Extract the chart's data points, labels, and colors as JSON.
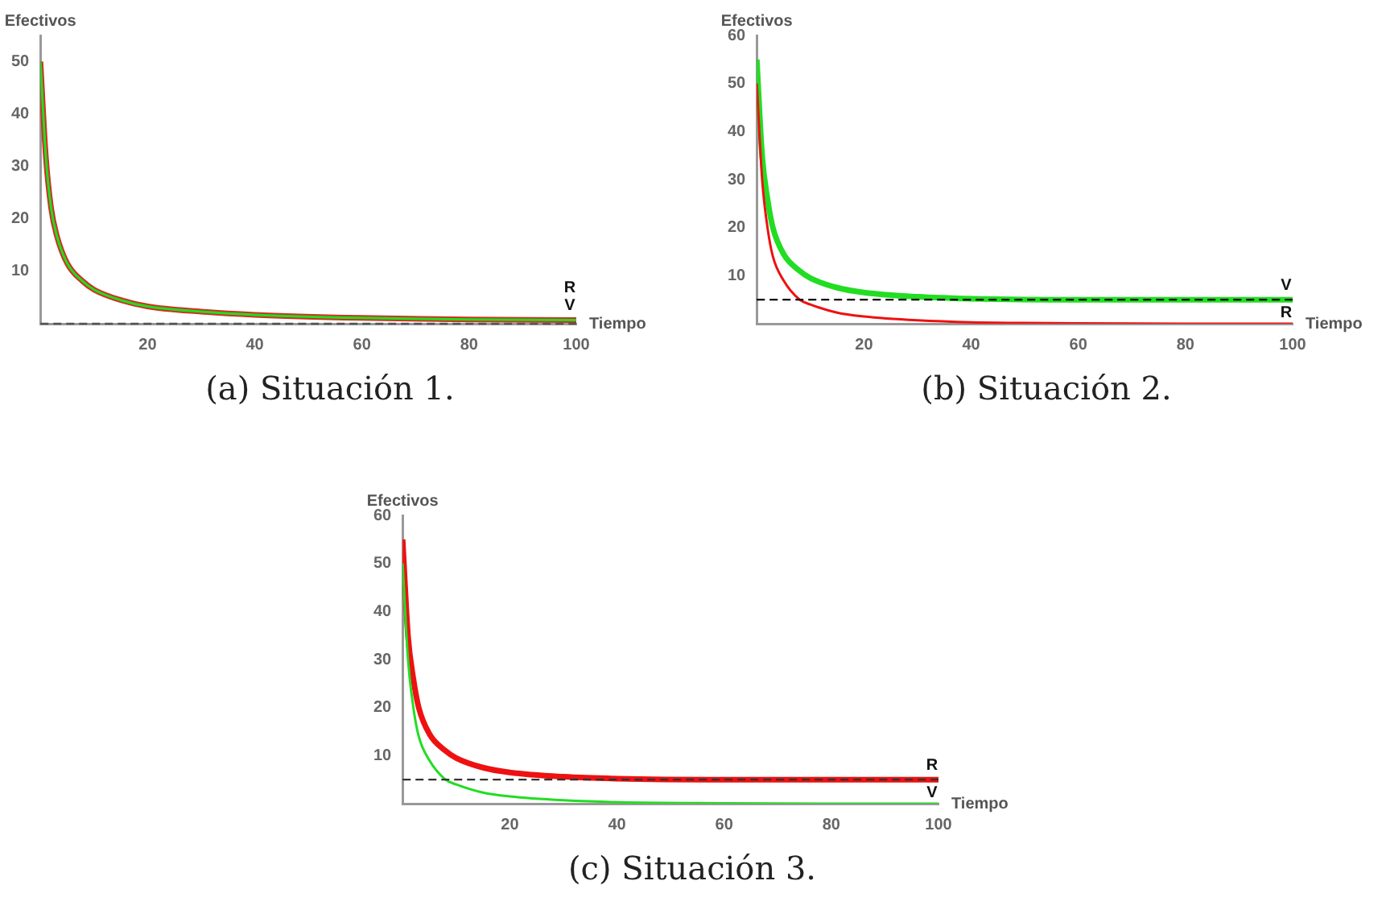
{
  "chart_data": [
    {
      "type": "line",
      "xlabel": "Tiempo",
      "ylabel": "Efectivos",
      "annotations": [
        "(a) Situación 1."
      ],
      "x": [
        0,
        1,
        2,
        3,
        5,
        8,
        10,
        15,
        20,
        30,
        40,
        60,
        80,
        100
      ],
      "xlim": [
        0,
        100
      ],
      "xticks": [
        20,
        40,
        60,
        80,
        100
      ],
      "ylim": [
        0,
        55
      ],
      "yticks": [
        10,
        20,
        30,
        40,
        50
      ],
      "grid": false,
      "legend": false,
      "marker": "none",
      "line_style": "solid",
      "ref_lines": [
        {
          "axis": "y",
          "value": 0,
          "color": "#555555",
          "line_style": "dashed"
        }
      ],
      "series": [
        {
          "name": "R",
          "color": "#cc3322",
          "values": [
            50,
            32,
            22,
            17,
            11.5,
            8,
            6.5,
            4.5,
            3.3,
            2.3,
            1.7,
            1.1,
            0.8,
            0.7
          ]
        },
        {
          "name": "V",
          "color": "#22dd22",
          "values": [
            50,
            32,
            22,
            17,
            11.5,
            8,
            6.5,
            4.5,
            3.3,
            2.3,
            1.7,
            1.1,
            0.8,
            0.7
          ]
        }
      ]
    },
    {
      "type": "line",
      "xlabel": "Tiempo",
      "ylabel": "Efectivos",
      "annotations": [
        "(b) Situación 2."
      ],
      "x": [
        0,
        1,
        2,
        3,
        5,
        8,
        10,
        15,
        20,
        30,
        40,
        60,
        80,
        100
      ],
      "xlim": [
        0,
        100
      ],
      "xticks": [
        20,
        40,
        60,
        80,
        100
      ],
      "ylim": [
        0,
        60
      ],
      "yticks": [
        10,
        20,
        30,
        40,
        50,
        60
      ],
      "grid": false,
      "legend": false,
      "marker": "none",
      "line_style": "solid",
      "ref_lines": [
        {
          "axis": "y",
          "value": 5,
          "color": "#000000",
          "line_style": "dashed"
        }
      ],
      "series": [
        {
          "name": "V",
          "color": "#22dd22",
          "values": [
            55,
            35,
            26,
            20,
            14.5,
            11,
            9.5,
            7.5,
            6.5,
            5.6,
            5.2,
            5,
            5,
            5
          ]
        },
        {
          "name": "R",
          "color": "#ee1111",
          "values": [
            50,
            30,
            20,
            14,
            9,
            5,
            4,
            2.3,
            1.5,
            0.7,
            0.3,
            0.1,
            0,
            0
          ]
        }
      ]
    },
    {
      "type": "line",
      "xlabel": "Tiempo",
      "ylabel": "Efectivos",
      "annotations": [
        "(c) Situación 3."
      ],
      "x": [
        0,
        1,
        2,
        3,
        5,
        8,
        10,
        15,
        20,
        30,
        40,
        60,
        80,
        100
      ],
      "xlim": [
        0,
        100
      ],
      "xticks": [
        20,
        40,
        60,
        80,
        100
      ],
      "ylim": [
        0,
        60
      ],
      "yticks": [
        10,
        20,
        30,
        40,
        50,
        60
      ],
      "grid": false,
      "legend": false,
      "marker": "none",
      "line_style": "solid",
      "ref_lines": [
        {
          "axis": "y",
          "value": 5,
          "color": "#333333",
          "line_style": "dashed"
        }
      ],
      "series": [
        {
          "name": "R",
          "color": "#ee1111",
          "values": [
            55,
            35,
            26,
            20,
            14.5,
            11,
            9.5,
            7.5,
            6.5,
            5.6,
            5.2,
            5,
            5,
            5
          ]
        },
        {
          "name": "V",
          "color": "#22dd22",
          "values": [
            50,
            30,
            20,
            14,
            9,
            5,
            4,
            2.3,
            1.5,
            0.7,
            0.3,
            0.1,
            0,
            0
          ]
        }
      ]
    }
  ]
}
